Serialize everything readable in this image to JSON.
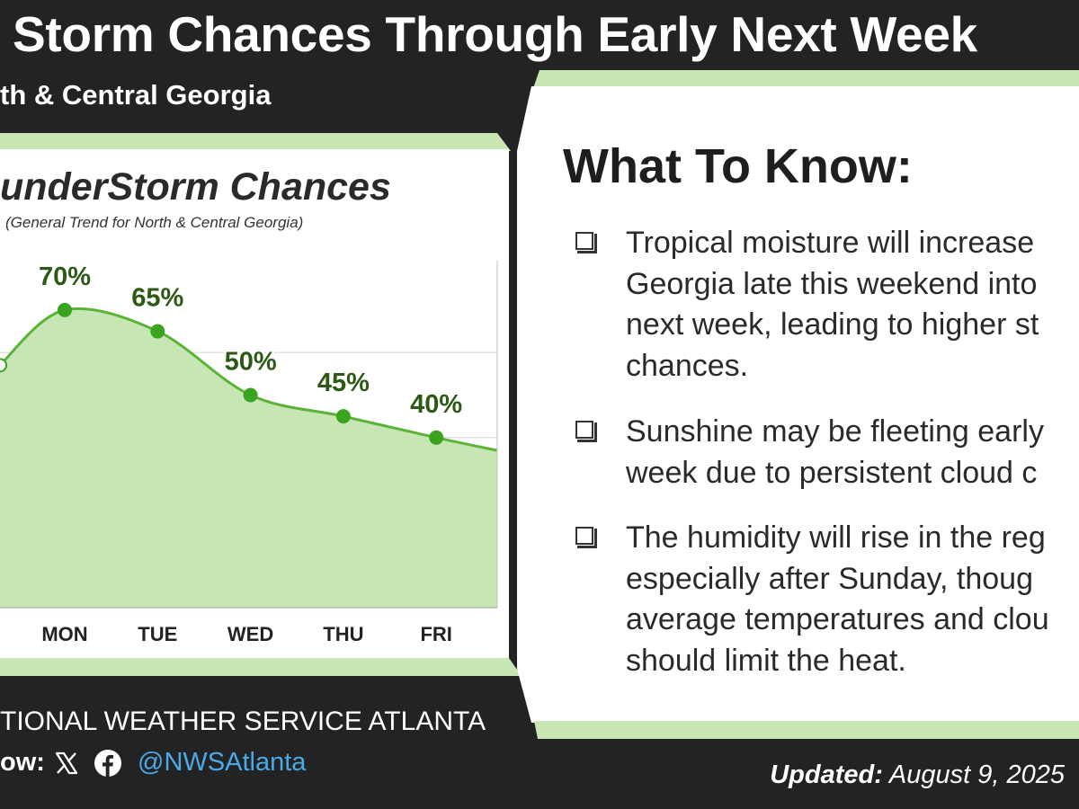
{
  "header": {
    "title": "Storm Chances Through Early Next Week",
    "subtitle": "th & Central Georgia"
  },
  "colors": {
    "background": "#232323",
    "accent_green": "#c9e6b5",
    "line_green": "#5db33a",
    "point_green": "#3aa31f",
    "label_green": "#2c5a14",
    "link_blue": "#4aa9e8"
  },
  "chart_data": {
    "type": "area",
    "title": "underStorm Chances",
    "subtitle": "(General Trend for North & Central Georgia)",
    "categories": [
      "MON",
      "TUE",
      "WED",
      "THU",
      "FRI"
    ],
    "series": [
      {
        "values": [
          70,
          65,
          50,
          45,
          40
        ],
        "labels": [
          "70%",
          "65%",
          "50%",
          "45%",
          "40%"
        ]
      }
    ],
    "ylim": [
      0,
      100
    ],
    "grid": true
  },
  "what_to_know": {
    "heading": "What To Know:",
    "bullets": [
      {
        "lines": [
          "Tropical moisture will increase",
          "Georgia late this weekend into",
          "next week, leading to higher st",
          "chances."
        ]
      },
      {
        "lines": [
          "Sunshine may be fleeting early",
          "week due to persistent cloud c"
        ]
      },
      {
        "lines": [
          "The humidity will rise in the reg",
          "especially after Sunday, thoug",
          "average temperatures and clou",
          "should limit the heat."
        ]
      }
    ]
  },
  "footer": {
    "organization": "TIONAL WEATHER SERVICE ATLANTA",
    "follow_label": "ow:",
    "x_icon": "x-logo-icon",
    "facebook_icon": "facebook-icon",
    "handle": "@NWSAtlanta",
    "updated_label": "Updated:",
    "updated_date": "August 9, 2025"
  }
}
